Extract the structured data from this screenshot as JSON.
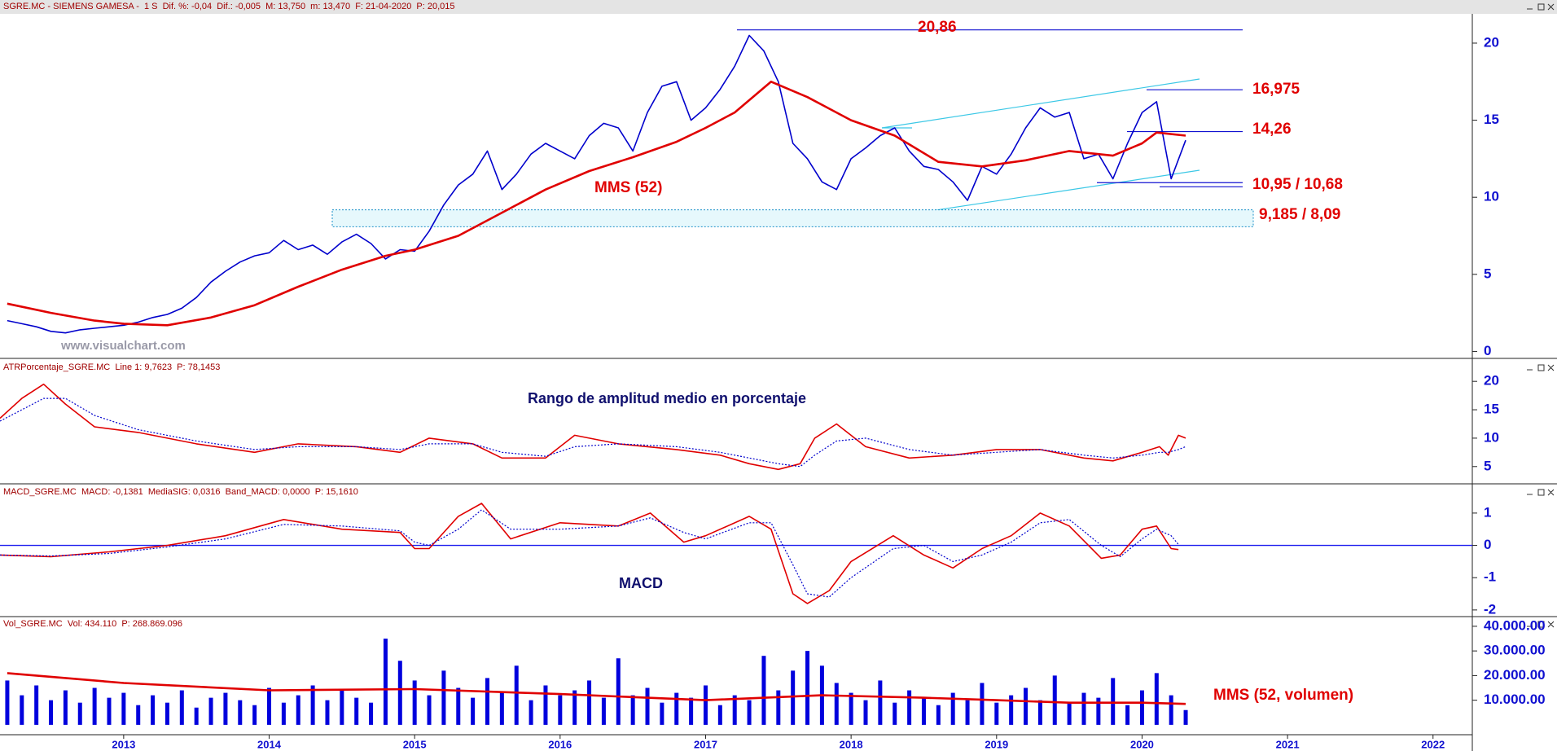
{
  "chart_data": [
    {
      "type": "line",
      "header": "SGRE.MC - SIEMENS GAMESA -  1 S  Dif. %: -0,04  Dif.: -0,005  M: 13,750  m: 13,470  F: 21-04-2020  P: 20,015",
      "watermark": "www.visualchart.com",
      "xlim": [
        2012.15,
        2022.27
      ],
      "ylim": [
        -0.4,
        21.9
      ],
      "yticks": [
        0,
        5,
        10,
        15,
        20
      ],
      "series": [
        {
          "color": "#0000cc",
          "x": [
            2012.2,
            2012.3,
            2012.4,
            2012.5,
            2012.6,
            2012.7,
            2012.8,
            2012.9,
            2013.0,
            2013.1,
            2013.2,
            2013.3,
            2013.4,
            2013.5,
            2013.6,
            2013.7,
            2013.8,
            2013.9,
            2014.0,
            2014.1,
            2014.2,
            2014.3,
            2014.4,
            2014.5,
            2014.6,
            2014.7,
            2014.8,
            2014.9,
            2015.0,
            2015.1,
            2015.2,
            2015.3,
            2015.4,
            2015.5,
            2015.6,
            2015.7,
            2015.8,
            2015.9,
            2016.0,
            2016.1,
            2016.2,
            2016.3,
            2016.4,
            2016.5,
            2016.6,
            2016.7,
            2016.8,
            2016.9,
            2017.0,
            2017.1,
            2017.2,
            2017.3,
            2017.4,
            2017.5,
            2017.6,
            2017.7,
            2017.8,
            2017.9,
            2018.0,
            2018.1,
            2018.2,
            2018.3,
            2018.4,
            2018.5,
            2018.6,
            2018.7,
            2018.8,
            2018.9,
            2019.0,
            2019.1,
            2019.2,
            2019.3,
            2019.4,
            2019.5,
            2019.6,
            2019.7,
            2019.8,
            2019.9,
            2020.0,
            2020.1,
            2020.2,
            2020.3
          ],
          "values": [
            2.0,
            1.8,
            1.6,
            1.3,
            1.2,
            1.4,
            1.5,
            1.6,
            1.7,
            1.9,
            2.2,
            2.4,
            2.8,
            3.5,
            4.5,
            5.2,
            5.8,
            6.2,
            6.4,
            7.2,
            6.6,
            6.9,
            6.3,
            7.1,
            7.6,
            7.0,
            6.0,
            6.6,
            6.5,
            7.8,
            9.5,
            10.8,
            11.5,
            13.0,
            10.5,
            11.5,
            12.8,
            13.5,
            13.0,
            12.5,
            14.0,
            14.8,
            14.5,
            13.0,
            15.5,
            17.2,
            17.5,
            15.0,
            15.8,
            17.0,
            18.5,
            20.5,
            19.5,
            17.5,
            13.5,
            12.5,
            11.0,
            10.5,
            12.5,
            13.2,
            14.0,
            14.5,
            13.0,
            12.0,
            11.8,
            11.0,
            9.8,
            12.0,
            11.5,
            12.8,
            14.5,
            15.8,
            15.2,
            15.5,
            12.5,
            12.8,
            11.2,
            13.5,
            15.5,
            16.2,
            11.2,
            13.7
          ]
        },
        {
          "name": "MMS (52)",
          "color": "#e00000",
          "x": [
            2012.2,
            2012.5,
            2012.8,
            2013.0,
            2013.3,
            2013.6,
            2013.9,
            2014.2,
            2014.5,
            2014.8,
            2015.0,
            2015.3,
            2015.6,
            2015.9,
            2016.2,
            2016.5,
            2016.8,
            2017.0,
            2017.2,
            2017.45,
            2017.7,
            2018.0,
            2018.3,
            2018.6,
            2018.9,
            2019.2,
            2019.5,
            2019.8,
            2020.0,
            2020.1,
            2020.3
          ],
          "values": [
            3.1,
            2.5,
            2.0,
            1.8,
            1.7,
            2.2,
            3.0,
            4.2,
            5.3,
            6.2,
            6.6,
            7.5,
            9.0,
            10.5,
            11.7,
            12.6,
            13.6,
            14.5,
            15.5,
            17.5,
            16.5,
            15.0,
            14.0,
            12.3,
            12.0,
            12.4,
            13.0,
            12.7,
            13.5,
            14.2,
            14.0
          ]
        }
      ],
      "levels": [
        {
          "values": [
            20.86
          ],
          "label": "20,86"
        },
        {
          "values": [
            16.975
          ],
          "label": "16,975"
        },
        {
          "values": [
            14.26
          ],
          "label": "14,26"
        },
        {
          "values": [
            10.95,
            10.68
          ],
          "label": "10,95 / 10,68"
        },
        {
          "values": [
            9.185,
            8.09
          ],
          "label": "9,185 / 8,09",
          "box": true
        }
      ]
    },
    {
      "type": "line",
      "header": "ATRPorcentaje_SGRE.MC  Line 1: 9,7623  P: 78,1453",
      "title": "Rango de amplitud medio en porcentaje",
      "xlim": [
        2012.15,
        2022.27
      ],
      "ylim": [
        2.1,
        23.9
      ],
      "yticks": [
        5,
        10,
        15,
        20
      ],
      "series": [
        {
          "color": "#e00000",
          "x": [
            2012.15,
            2012.3,
            2012.45,
            2012.6,
            2012.8,
            2013.1,
            2013.5,
            2013.9,
            2014.2,
            2014.6,
            2014.9,
            2015.1,
            2015.4,
            2015.6,
            2015.9,
            2016.1,
            2016.4,
            2016.8,
            2017.1,
            2017.3,
            2017.5,
            2017.65,
            2017.75,
            2017.9,
            2018.1,
            2018.4,
            2018.7,
            2019.0,
            2019.3,
            2019.6,
            2019.8,
            2020.0,
            2020.12,
            2020.18,
            2020.25,
            2020.3
          ],
          "values": [
            13.5,
            17,
            19.5,
            16,
            12,
            11,
            9,
            7.5,
            9,
            8.5,
            7.5,
            10,
            9,
            6.5,
            6.5,
            10.5,
            9,
            8,
            7,
            5.5,
            4.5,
            5.5,
            10,
            12.5,
            8.5,
            6.5,
            7,
            8,
            8,
            6.5,
            6,
            7.5,
            8.5,
            7,
            10.5,
            10
          ]
        },
        {
          "color": "#0000cc",
          "style": "dotted",
          "x": [
            2012.15,
            2012.3,
            2012.45,
            2012.6,
            2012.8,
            2013.1,
            2013.5,
            2013.9,
            2014.2,
            2014.6,
            2014.9,
            2015.1,
            2015.4,
            2015.6,
            2015.9,
            2016.1,
            2016.4,
            2016.8,
            2017.1,
            2017.3,
            2017.5,
            2017.65,
            2017.75,
            2017.9,
            2018.1,
            2018.4,
            2018.7,
            2019.0,
            2019.3,
            2019.6,
            2019.8,
            2020.0,
            2020.12,
            2020.18,
            2020.25,
            2020.3
          ],
          "values": [
            13,
            15,
            17,
            17,
            14,
            11.5,
            9.5,
            8,
            8.5,
            8.5,
            8,
            9,
            9,
            7.5,
            6.8,
            8.5,
            9,
            8.5,
            7.5,
            6.5,
            5.5,
            5,
            7,
            9.5,
            10,
            8,
            7,
            7.5,
            8,
            7,
            6.5,
            7,
            7.5,
            7.5,
            8,
            8.5
          ]
        }
      ]
    },
    {
      "type": "line",
      "header": "MACD_SGRE.MC  MACD: -0,1381  MediaSIG: 0,0316  Band_MACD: 0,0000  P: 15,1610",
      "title": "MACD",
      "zero_line": true,
      "xlim": [
        2012.15,
        2022.27
      ],
      "ylim": [
        -2.18,
        1.88
      ],
      "yticks": [
        1,
        0,
        -1,
        -2
      ],
      "series": [
        {
          "color": "#e00000",
          "x": [
            2012.15,
            2012.5,
            2012.9,
            2013.3,
            2013.7,
            2014.1,
            2014.5,
            2014.9,
            2015.0,
            2015.1,
            2015.3,
            2015.46,
            2015.66,
            2016.0,
            2016.4,
            2016.62,
            2016.85,
            2017.0,
            2017.3,
            2017.45,
            2017.6,
            2017.7,
            2017.85,
            2018.0,
            2018.29,
            2018.5,
            2018.7,
            2018.9,
            2019.1,
            2019.3,
            2019.5,
            2019.72,
            2019.85,
            2020.0,
            2020.1,
            2020.2,
            2020.25
          ],
          "values": [
            -0.3,
            -0.35,
            -0.2,
            0.0,
            0.3,
            0.8,
            0.5,
            0.4,
            -0.1,
            -0.1,
            0.9,
            1.3,
            0.2,
            0.7,
            0.6,
            1.0,
            0.1,
            0.3,
            0.9,
            0.5,
            -1.5,
            -1.8,
            -1.4,
            -0.5,
            0.3,
            -0.3,
            -0.7,
            -0.1,
            0.3,
            1.0,
            0.6,
            -0.4,
            -0.3,
            0.5,
            0.6,
            -0.1,
            -0.13
          ]
        },
        {
          "color": "#0000cc",
          "style": "dotted",
          "x": [
            2012.15,
            2012.5,
            2012.9,
            2013.3,
            2013.7,
            2014.1,
            2014.5,
            2014.9,
            2015.0,
            2015.1,
            2015.3,
            2015.46,
            2015.66,
            2016.0,
            2016.4,
            2016.62,
            2016.85,
            2017.0,
            2017.3,
            2017.45,
            2017.6,
            2017.7,
            2017.85,
            2018.0,
            2018.29,
            2018.5,
            2018.7,
            2018.9,
            2019.1,
            2019.3,
            2019.5,
            2019.72,
            2019.85,
            2020.0,
            2020.1,
            2020.2,
            2020.25
          ],
          "values": [
            -0.3,
            -0.33,
            -0.25,
            -0.05,
            0.2,
            0.65,
            0.6,
            0.45,
            0.1,
            0.0,
            0.5,
            1.1,
            0.5,
            0.5,
            0.6,
            0.85,
            0.4,
            0.2,
            0.7,
            0.7,
            -0.6,
            -1.5,
            -1.6,
            -1.0,
            -0.1,
            0.0,
            -0.5,
            -0.3,
            0.1,
            0.7,
            0.8,
            0.0,
            -0.35,
            0.2,
            0.5,
            0.3,
            0.03
          ]
        }
      ]
    },
    {
      "type": "bar",
      "header": "Vol_SGRE.MC  Vol: 434.110  P: 268.869.096",
      "xlim": [
        2012.15,
        2022.27
      ],
      "ylim": [
        -4000,
        43600
      ],
      "yticks": [
        {
          "value": 10000,
          "label": "10.000.00"
        },
        {
          "value": 20000,
          "label": "20.000.00"
        },
        {
          "value": 30000,
          "label": "30.000.00"
        },
        {
          "value": 40000,
          "label": "40.000.00"
        }
      ],
      "xticks": [
        2013,
        2014,
        2015,
        2016,
        2017,
        2018,
        2019,
        2020,
        2021,
        2022
      ],
      "series": [
        {
          "color": "#0000dd",
          "x": [
            2012.2,
            2012.3,
            2012.4,
            2012.5,
            2012.6,
            2012.7,
            2012.8,
            2012.9,
            2013.0,
            2013.1,
            2013.2,
            2013.3,
            2013.4,
            2013.5,
            2013.6,
            2013.7,
            2013.8,
            2013.9,
            2014.0,
            2014.1,
            2014.2,
            2014.3,
            2014.4,
            2014.5,
            2014.6,
            2014.7,
            2014.8,
            2014.9,
            2015.0,
            2015.1,
            2015.2,
            2015.3,
            2015.4,
            2015.5,
            2015.6,
            2015.7,
            2015.8,
            2015.9,
            2016.0,
            2016.1,
            2016.2,
            2016.3,
            2016.4,
            2016.5,
            2016.6,
            2016.7,
            2016.8,
            2016.9,
            2017.0,
            2017.1,
            2017.2,
            2017.3,
            2017.4,
            2017.5,
            2017.6,
            2017.7,
            2017.8,
            2017.9,
            2018.0,
            2018.1,
            2018.2,
            2018.3,
            2018.4,
            2018.5,
            2018.6,
            2018.7,
            2018.8,
            2018.9,
            2019.0,
            2019.1,
            2019.2,
            2019.3,
            2019.4,
            2019.5,
            2019.6,
            2019.7,
            2019.8,
            2019.9,
            2020.0,
            2020.1,
            2020.2,
            2020.3
          ],
          "values": [
            18000,
            12000,
            16000,
            10000,
            14000,
            9000,
            15000,
            11000,
            13000,
            8000,
            12000,
            9000,
            14000,
            7000,
            11000,
            13000,
            10000,
            8000,
            15000,
            9000,
            12000,
            16000,
            10000,
            14000,
            11000,
            9000,
            35000,
            26000,
            18000,
            12000,
            22000,
            15000,
            11000,
            19000,
            13000,
            24000,
            10000,
            16000,
            12000,
            14000,
            18000,
            11000,
            27000,
            12000,
            15000,
            9000,
            13000,
            11000,
            16000,
            8000,
            12000,
            10000,
            28000,
            14000,
            22000,
            30000,
            24000,
            17000,
            13000,
            10000,
            18000,
            9000,
            14000,
            11000,
            8000,
            13000,
            10000,
            17000,
            9000,
            12000,
            15000,
            10000,
            20000,
            9000,
            13000,
            11000,
            19000,
            8000,
            14000,
            21000,
            12000,
            6000
          ]
        },
        {
          "name": "MMS (52, volumen)",
          "type": "line",
          "color": "#e00000",
          "x": [
            2012.2,
            2013,
            2014,
            2015,
            2016,
            2017,
            2017.8,
            2018.5,
            2019,
            2019.5,
            2020,
            2020.3
          ],
          "values": [
            21000,
            17000,
            14000,
            14500,
            12500,
            10000,
            12000,
            11000,
            10000,
            9000,
            9000,
            8500
          ]
        }
      ]
    }
  ]
}
